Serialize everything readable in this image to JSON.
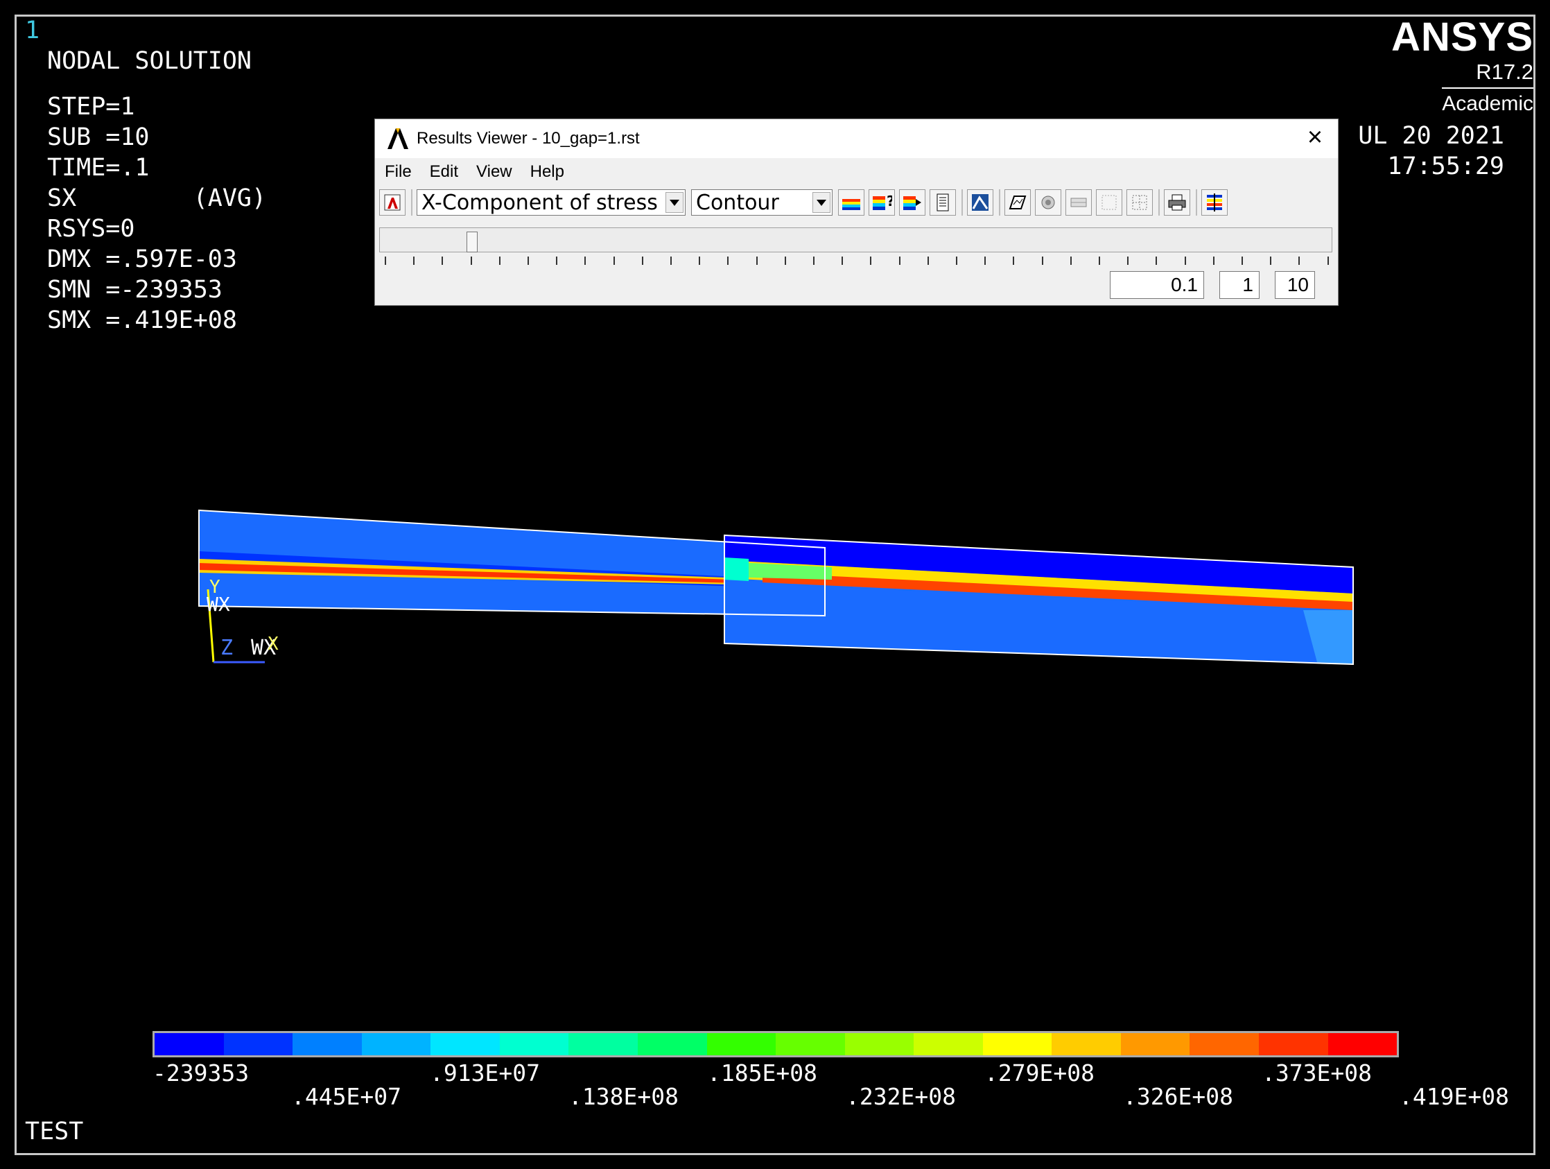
{
  "window_number": "1",
  "header": {
    "title": "NODAL SOLUTION",
    "lines": [
      "STEP=1",
      "SUB =10",
      "TIME=.1",
      "SX        (AVG)",
      "RSYS=0",
      "DMX =.597E-03",
      "SMN =-239353",
      "SMX =.419E+08"
    ]
  },
  "logo": {
    "brand": "ANSYS",
    "version": "R17.2",
    "edition": "Academic"
  },
  "datetime": {
    "date": "UL 20 2021",
    "time": "17:55:29"
  },
  "results_viewer": {
    "title": "Results Viewer -  10_gap=1.rst",
    "menu": [
      "File",
      "Edit",
      "View",
      "Help"
    ],
    "item_select": "X-Component of stress",
    "plot_type_select": "Contour",
    "time_value": "0.1",
    "step_value": "1",
    "substep_value": "10"
  },
  "triad": {
    "y": "Y",
    "wx_top": "WX",
    "z": "Z",
    "wx": "WX",
    "x": "X"
  },
  "legend": {
    "colors": [
      "#0000ff",
      "#0033ff",
      "#0080ff",
      "#00b3ff",
      "#00e6ff",
      "#00ffd0",
      "#00ffa0",
      "#00ff66",
      "#33ff00",
      "#66ff00",
      "#99ff00",
      "#ccff00",
      "#ffff00",
      "#ffcc00",
      "#ff9900",
      "#ff6600",
      "#ff3300",
      "#ff0000"
    ],
    "labels_top": [
      "-239353",
      ".913E+07",
      ".185E+08",
      ".279E+08",
      ".373E+08"
    ],
    "labels_bottom": [
      ".445E+07",
      ".138E+08",
      ".232E+08",
      ".326E+08",
      ".419E+08"
    ]
  },
  "footer": {
    "title": "TEST"
  }
}
